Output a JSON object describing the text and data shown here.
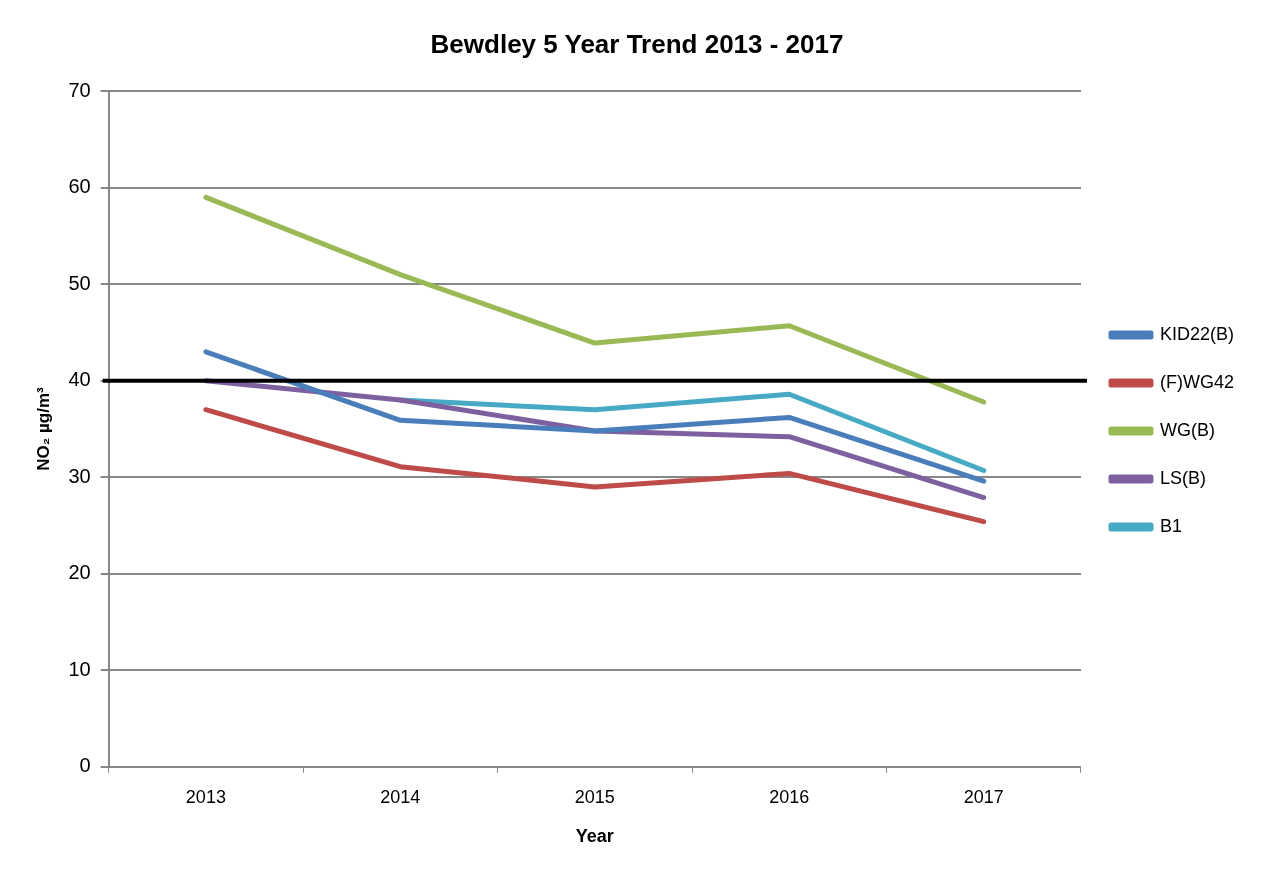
{
  "chart_data": {
    "type": "line",
    "title": "Bewdley 5 Year Trend 2013 - 2017",
    "xlabel": "Year",
    "ylabel": "NO₂ µg/m³",
    "categories": [
      "2013",
      "2014",
      "2015",
      "2016",
      "2017"
    ],
    "series": [
      {
        "name": "KID22(B)",
        "color": "#4a7ebb",
        "values": [
          43,
          35.9,
          34.8,
          36.2,
          29.6
        ]
      },
      {
        "name": "(F)WG42",
        "color": "#be4b48",
        "values": [
          37,
          31.1,
          29,
          30.4,
          25.4
        ]
      },
      {
        "name": "WG(B)",
        "color": "#98b954",
        "values": [
          59,
          51,
          43.9,
          45.7,
          37.8
        ]
      },
      {
        "name": "LS(B)",
        "color": "#7d60a0",
        "values": [
          40,
          38,
          34.8,
          34.2,
          27.9
        ]
      },
      {
        "name": "B1",
        "color": "#46aac5",
        "values": [
          null,
          38,
          37,
          38.6,
          30.7
        ]
      }
    ],
    "ylim": [
      0,
      70
    ],
    "yticks": [
      0,
      10,
      20,
      30,
      40,
      50,
      60,
      70
    ],
    "grid": "y",
    "legend": "right",
    "marker": "none",
    "line_style": "solid",
    "ref_lines": [
      {
        "axis": "y",
        "value": 40,
        "color": "#000000"
      }
    ]
  }
}
